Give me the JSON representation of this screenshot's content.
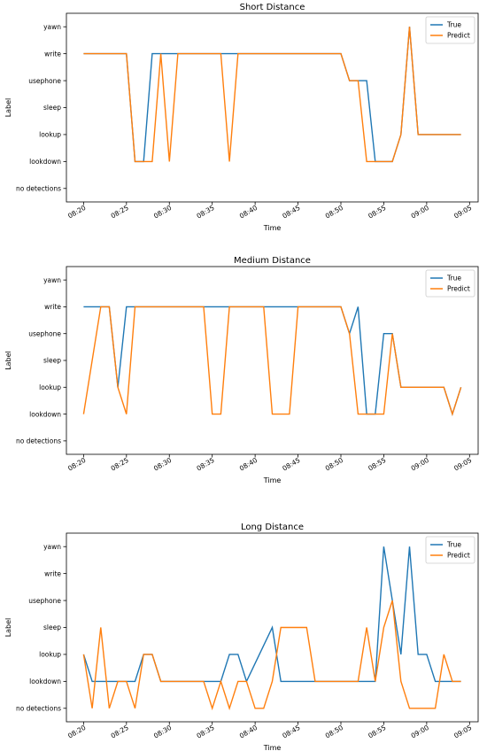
{
  "chart_data": [
    {
      "type": "line",
      "title": "Short Distance",
      "xlabel": "Time",
      "ylabel": "Label",
      "categories": [
        "no detections",
        "lookdown",
        "lookup",
        "sleep",
        "usephone",
        "write",
        "yawn"
      ],
      "x_ticks": [
        "08:20",
        "08:25",
        "08:30",
        "08:35",
        "08:40",
        "08:45",
        "08:50",
        "08:55",
        "09:00",
        "09:05"
      ],
      "xlim": [
        "08:18",
        "09:06"
      ],
      "legend": "top-right",
      "grid": false,
      "colors": {
        "True": "#1f77b4",
        "Predict": "#ff7f0e"
      },
      "series": [
        {
          "name": "True",
          "x": [
            "08:20",
            "08:25",
            "08:26",
            "08:27",
            "08:28",
            "08:30",
            "08:37",
            "08:38",
            "08:50",
            "08:51",
            "08:52",
            "08:53",
            "08:54",
            "08:55",
            "08:56",
            "08:57",
            "08:58",
            "08:59",
            "09:04"
          ],
          "values": [
            "write",
            "write",
            "lookdown",
            "lookdown",
            "write",
            "write",
            "write",
            "write",
            "write",
            "usephone",
            "usephone",
            "usephone",
            "lookdown",
            "lookdown",
            "lookdown",
            "lookup",
            "yawn",
            "lookup",
            "lookup"
          ]
        },
        {
          "name": "Predict",
          "x": [
            "08:20",
            "08:25",
            "08:26",
            "08:27",
            "08:28",
            "08:29",
            "08:30",
            "08:31",
            "08:36",
            "08:37",
            "08:38",
            "08:50",
            "08:51",
            "08:52",
            "08:53",
            "08:54",
            "08:55",
            "08:56",
            "08:57",
            "08:58",
            "08:59",
            "09:04"
          ],
          "values": [
            "write",
            "write",
            "lookdown",
            "lookdown",
            "lookdown",
            "write",
            "lookdown",
            "write",
            "write",
            "lookdown",
            "write",
            "write",
            "usephone",
            "usephone",
            "lookdown",
            "lookdown",
            "lookdown",
            "lookdown",
            "lookup",
            "yawn",
            "lookup",
            "lookup"
          ]
        }
      ]
    },
    {
      "type": "line",
      "title": "Medium Distance",
      "xlabel": "Time",
      "ylabel": "Label",
      "categories": [
        "no detections",
        "lookdown",
        "lookup",
        "sleep",
        "usephone",
        "write",
        "yawn"
      ],
      "x_ticks": [
        "08:20",
        "08:25",
        "08:30",
        "08:35",
        "08:40",
        "08:45",
        "08:50",
        "08:55",
        "09:00",
        "09:05"
      ],
      "xlim": [
        "08:18",
        "09:06"
      ],
      "legend": "top-right",
      "grid": false,
      "colors": {
        "True": "#1f77b4",
        "Predict": "#ff7f0e"
      },
      "series": [
        {
          "name": "True",
          "x": [
            "08:20",
            "08:22",
            "08:23",
            "08:24",
            "08:25",
            "08:35",
            "08:36",
            "08:37",
            "08:50",
            "08:51",
            "08:52",
            "08:53",
            "08:54",
            "08:55",
            "08:56",
            "08:57",
            "09:02",
            "09:03",
            "09:04"
          ],
          "values": [
            "write",
            "write",
            "write",
            "lookup",
            "write",
            "write",
            "write",
            "write",
            "write",
            "usephone",
            "write",
            "lookdown",
            "lookdown",
            "usephone",
            "usephone",
            "lookup",
            "lookup",
            "lookdown",
            "lookup"
          ]
        },
        {
          "name": "Predict",
          "x": [
            "08:20",
            "08:22",
            "08:23",
            "08:24",
            "08:25",
            "08:26",
            "08:34",
            "08:35",
            "08:36",
            "08:37",
            "08:41",
            "08:42",
            "08:43",
            "08:44",
            "08:45",
            "08:50",
            "08:51",
            "08:52",
            "08:53",
            "08:54",
            "08:55",
            "08:56",
            "08:57",
            "09:02",
            "09:03",
            "09:04"
          ],
          "values": [
            "lookdown",
            "write",
            "write",
            "lookup",
            "lookdown",
            "write",
            "write",
            "lookdown",
            "lookdown",
            "write",
            "write",
            "lookdown",
            "lookdown",
            "lookdown",
            "write",
            "write",
            "usephone",
            "lookdown",
            "lookdown",
            "lookdown",
            "lookdown",
            "usephone",
            "lookup",
            "lookup",
            "lookdown",
            "lookup"
          ]
        }
      ]
    },
    {
      "type": "line",
      "title": "Long Distance",
      "xlabel": "Time",
      "ylabel": "Label",
      "categories": [
        "no detections",
        "lookdown",
        "lookup",
        "sleep",
        "usephone",
        "write",
        "yawn"
      ],
      "x_ticks": [
        "08:20",
        "08:25",
        "08:30",
        "08:35",
        "08:40",
        "08:45",
        "08:50",
        "08:55",
        "09:00",
        "09:05"
      ],
      "xlim": [
        "08:18",
        "09:06"
      ],
      "legend": "top-right",
      "grid": false,
      "colors": {
        "True": "#1f77b4",
        "Predict": "#ff7f0e"
      },
      "series": [
        {
          "name": "True",
          "x": [
            "08:20",
            "08:21",
            "08:26",
            "08:27",
            "08:28",
            "08:29",
            "08:36",
            "08:37",
            "08:38",
            "08:39",
            "08:42",
            "08:43",
            "08:52",
            "08:53",
            "08:54",
            "08:55",
            "08:57",
            "08:58",
            "08:59",
            "09:00",
            "09:01",
            "09:02",
            "09:04"
          ],
          "values": [
            "lookup",
            "lookdown",
            "lookdown",
            "lookup",
            "lookup",
            "lookdown",
            "lookdown",
            "lookup",
            "lookup",
            "lookdown",
            "sleep",
            "lookdown",
            "lookdown",
            "lookdown",
            "lookdown",
            "yawn",
            "lookup",
            "yawn",
            "lookup",
            "lookup",
            "lookdown",
            "lookdown",
            "lookdown"
          ]
        },
        {
          "name": "Predict",
          "x": [
            "08:20",
            "08:21",
            "08:22",
            "08:23",
            "08:24",
            "08:25",
            "08:26",
            "08:27",
            "08:28",
            "08:29",
            "08:34",
            "08:35",
            "08:36",
            "08:37",
            "08:38",
            "08:39",
            "08:40",
            "08:41",
            "08:42",
            "08:43",
            "08:44",
            "08:45",
            "08:46",
            "08:47",
            "08:52",
            "08:53",
            "08:54",
            "08:55",
            "08:56",
            "08:57",
            "08:58",
            "09:01",
            "09:02",
            "09:03",
            "09:04"
          ],
          "values": [
            "lookup",
            "no detections",
            "sleep",
            "no detections",
            "lookdown",
            "lookdown",
            "no detections",
            "lookup",
            "lookup",
            "lookdown",
            "lookdown",
            "no detections",
            "lookdown",
            "no detections",
            "lookdown",
            "lookdown",
            "no detections",
            "no detections",
            "lookdown",
            "sleep",
            "sleep",
            "sleep",
            "sleep",
            "lookdown",
            "lookdown",
            "sleep",
            "lookdown",
            "sleep",
            "usephone",
            "lookdown",
            "no detections",
            "no detections",
            "lookup",
            "lookdown",
            "lookdown"
          ]
        }
      ]
    }
  ]
}
